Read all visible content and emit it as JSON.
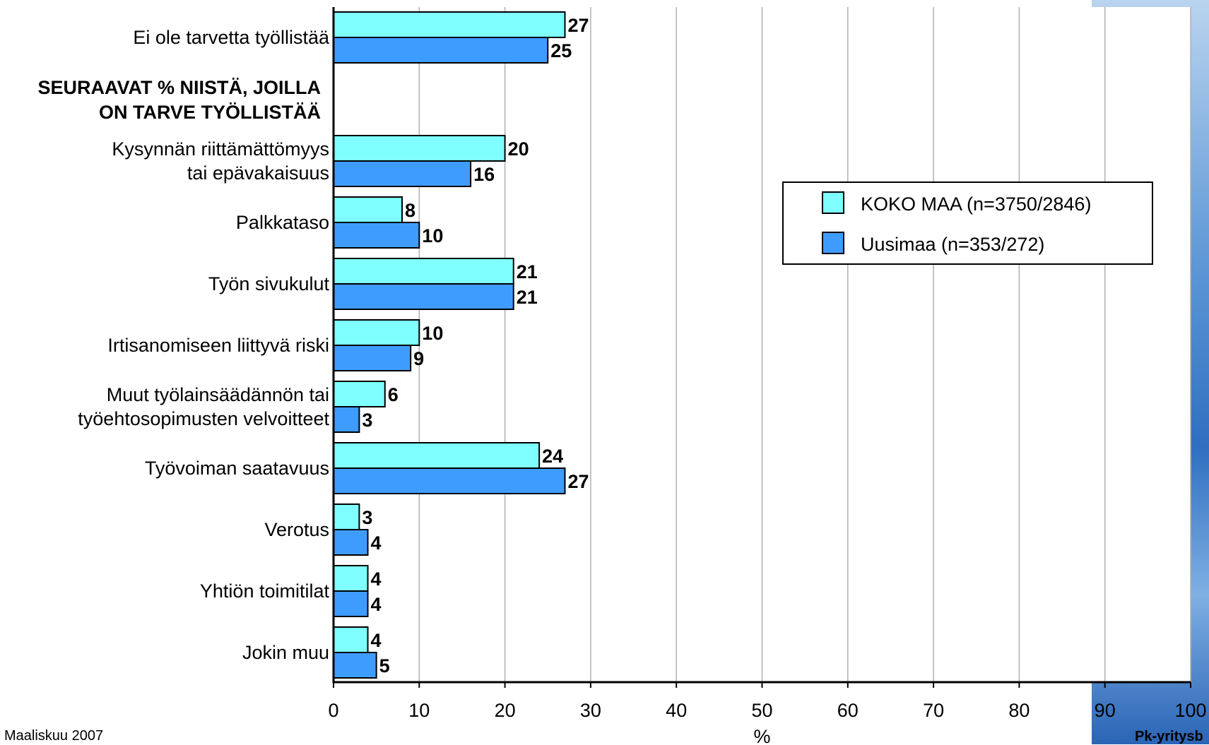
{
  "footer": {
    "date": "Maaliskuu 2007",
    "source": "Pk-yritysb"
  },
  "colors": {
    "series_1": "#7fffff",
    "series_2": "#3f9cff",
    "grid": "#b0b0b0",
    "background_strip": "#3f7fcf"
  },
  "chart_data": {
    "type": "bar",
    "orientation": "horizontal",
    "categories": [
      [
        "Ei ole tarvetta työllistää"
      ],
      [
        "Kysynnän riittämättömyys",
        "tai epävakaisuus"
      ],
      [
        "Palkkataso"
      ],
      [
        "Työn sivukulut"
      ],
      [
        "Irtisanomiseen liittyvä riski"
      ],
      [
        "Muut työlainsäädännön tai",
        "työehtosopimusten velvoitteet"
      ],
      [
        "Työvoiman saatavuus"
      ],
      [
        "Verotus"
      ],
      [
        "Yhtiön toimitilat"
      ],
      [
        "Jokin muu"
      ]
    ],
    "section_label": [
      "SEURAAVAT % NIISTÄ, JOILLA",
      "ON TARVE TYÖLLISTÄÄ"
    ],
    "series": [
      {
        "name": "KOKO MAA (n=3750/2846)",
        "values": [
          27,
          20,
          8,
          21,
          10,
          6,
          24,
          3,
          4,
          4
        ]
      },
      {
        "name": "Uusimaa (n=353/272)",
        "values": [
          25,
          16,
          10,
          21,
          9,
          3,
          27,
          4,
          4,
          5
        ]
      }
    ],
    "xlabel": "%",
    "xlim": [
      0,
      100
    ],
    "xticks": [
      0,
      10,
      20,
      30,
      40,
      50,
      60,
      70,
      80,
      90,
      100
    ],
    "grid": true,
    "legend_position": "right"
  }
}
